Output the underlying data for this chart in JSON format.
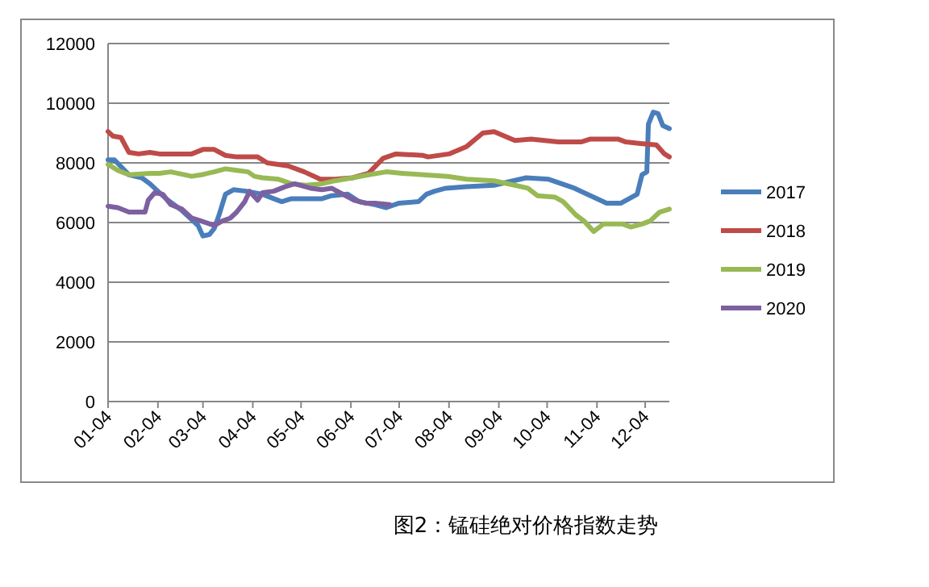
{
  "chart_data": {
    "type": "line",
    "title": "图2：锰硅绝对价格指数走势",
    "xlim": [
      "--01-04",
      "--12-19"
    ],
    "xticks": [
      {
        "value": "--01-04",
        "label": "01-04"
      },
      {
        "value": "--02-04",
        "label": "02-04"
      },
      {
        "value": "--03-04",
        "label": "03-04"
      },
      {
        "value": "--04-04",
        "label": "04-04"
      },
      {
        "value": "--05-04",
        "label": "05-04"
      },
      {
        "value": "--06-04",
        "label": "06-04"
      },
      {
        "value": "--07-04",
        "label": "07-04"
      },
      {
        "value": "--08-04",
        "label": "08-04"
      },
      {
        "value": "--09-04",
        "label": "09-04"
      },
      {
        "value": "--10-04",
        "label": "10-04"
      },
      {
        "value": "--11-04",
        "label": "11-04"
      },
      {
        "value": "--12-04",
        "label": "12-04"
      }
    ],
    "ylim": [
      0,
      12000
    ],
    "yticks": [
      0,
      2000,
      4000,
      6000,
      8000,
      10000,
      12000
    ],
    "grid": "y",
    "legend": "right",
    "series": [
      {
        "name": "2017",
        "color": "#4a7ebb",
        "x": [
          "--01-04",
          "--01-08",
          "--01-17",
          "--01-25",
          "--01-30",
          "--02-09",
          "--02-19",
          "--03-01",
          "--03-04",
          "--03-08",
          "--03-11",
          "--03-14",
          "--03-18",
          "--03-23",
          "--03-31",
          "--04-10",
          "--04-17",
          "--04-22",
          "--04-28",
          "--05-17",
          "--05-23",
          "--06-02",
          "--06-09",
          "--06-19",
          "--06-26",
          "--07-04",
          "--07-16",
          "--07-21",
          "--07-26",
          "--08-02",
          "--08-15",
          "--09-01",
          "--09-21",
          "--10-05",
          "--10-21",
          "--11-10",
          "--11-19",
          "--11-29",
          "--12-02",
          "--12-05",
          "--12-06",
          "--12-09",
          "--12-12",
          "--12-15",
          "--12-19"
        ],
        "values": [
          8100,
          8100,
          7600,
          7500,
          7300,
          6800,
          6400,
          5900,
          5550,
          5600,
          5800,
          6250,
          6950,
          7100,
          7050,
          6950,
          6800,
          6700,
          6800,
          6800,
          6900,
          6950,
          6700,
          6600,
          6500,
          6650,
          6700,
          6950,
          7050,
          7150,
          7200,
          7250,
          7500,
          7450,
          7150,
          6650,
          6650,
          6950,
          7600,
          7700,
          9300,
          9700,
          9650,
          9250,
          9150
        ]
      },
      {
        "name": "2018",
        "color": "#be4b48",
        "x": [
          "--01-04",
          "--01-07",
          "--01-12",
          "--01-17",
          "--01-23",
          "--01-30",
          "--02-05",
          "--02-25",
          "--03-04",
          "--03-11",
          "--03-18",
          "--03-25",
          "--04-07",
          "--04-13",
          "--04-26",
          "--05-06",
          "--05-16",
          "--05-25",
          "--06-05",
          "--06-15",
          "--06-24",
          "--07-02",
          "--07-19",
          "--07-22",
          "--08-04",
          "--08-15",
          "--08-25",
          "--09-01",
          "--09-14",
          "--09-24",
          "--10-11",
          "--10-25",
          "--10-31",
          "--11-17",
          "--11-22",
          "--12-01",
          "--12-11",
          "--12-16",
          "--12-19"
        ],
        "values": [
          9050,
          8900,
          8850,
          8350,
          8300,
          8350,
          8300,
          8300,
          8450,
          8450,
          8250,
          8200,
          8200,
          8000,
          7900,
          7700,
          7450,
          7450,
          7500,
          7650,
          8150,
          8300,
          8250,
          8200,
          8300,
          8550,
          9000,
          9050,
          8750,
          8800,
          8700,
          8700,
          8800,
          8800,
          8700,
          8650,
          8600,
          8300,
          8200
        ]
      },
      {
        "name": "2019",
        "color": "#98b954",
        "x": [
          "--01-04",
          "--01-10",
          "--01-17",
          "--01-30",
          "--02-05",
          "--02-12",
          "--02-25",
          "--03-03",
          "--03-11",
          "--03-18",
          "--03-25",
          "--04-01",
          "--04-05",
          "--04-10",
          "--04-20",
          "--04-28",
          "--05-07",
          "--05-17",
          "--05-25",
          "--06-05",
          "--06-15",
          "--06-26",
          "--07-06",
          "--07-19",
          "--08-03",
          "--08-15",
          "--09-01",
          "--09-14",
          "--09-22",
          "--09-28",
          "--10-09",
          "--10-14",
          "--10-22",
          "--10-27",
          "--11-02",
          "--11-08",
          "--11-20",
          "--11-25",
          "--12-02",
          "--12-07",
          "--12-13",
          "--12-19"
        ],
        "values": [
          7950,
          7750,
          7600,
          7650,
          7650,
          7700,
          7550,
          7600,
          7700,
          7800,
          7750,
          7700,
          7550,
          7500,
          7450,
          7300,
          7250,
          7300,
          7400,
          7500,
          7600,
          7700,
          7650,
          7600,
          7550,
          7450,
          7400,
          7250,
          7150,
          6900,
          6850,
          6700,
          6250,
          6050,
          5700,
          5950,
          5950,
          5850,
          5950,
          6050,
          6350,
          6450
        ]
      },
      {
        "name": "2020",
        "color": "#7d60a0",
        "x": [
          "--01-04",
          "--01-10",
          "--01-17",
          "--01-27",
          "--01-29",
          "--02-02",
          "--02-07",
          "--02-12",
          "--02-19",
          "--02-25",
          "--03-03",
          "--03-11",
          "--03-16",
          "--03-21",
          "--03-25",
          "--03-30",
          "--04-02",
          "--04-07",
          "--04-10",
          "--04-17",
          "--04-24",
          "--04-30",
          "--05-10",
          "--05-17",
          "--05-23",
          "--05-30",
          "--06-06",
          "--06-13",
          "--06-19",
          "--06-28"
        ],
        "values": [
          6550,
          6500,
          6350,
          6350,
          6750,
          7000,
          6950,
          6600,
          6450,
          6150,
          6050,
          5900,
          6050,
          6150,
          6350,
          6700,
          7050,
          6750,
          7000,
          7050,
          7200,
          7300,
          7150,
          7100,
          7150,
          6950,
          6750,
          6650,
          6650,
          6600
        ]
      }
    ]
  }
}
